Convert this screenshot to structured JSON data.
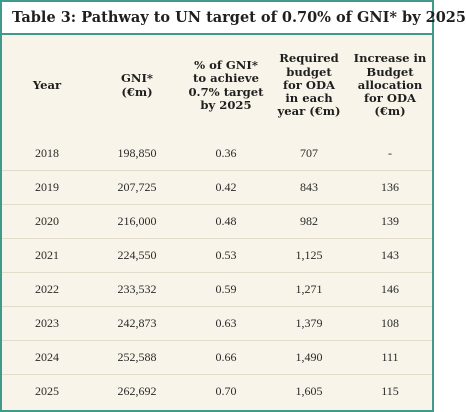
{
  "title": "Table 3:  Pathway to UN target of 0.70% of GNI* by 2025",
  "columns": [
    "Year",
    "GNI*\n(€m)",
    "% of GNI*\nto achieve\n0.7% target\nby 2025",
    "Required\nbudget\nfor ODA\nin each\nyear (€m)",
    "Increase in\nBudget\nallocation\nfor ODA\n(€m)"
  ],
  "rows": [
    [
      "2018",
      "198,850",
      "0.36",
      "707",
      "-"
    ],
    [
      "2019",
      "207,725",
      "0.42",
      "843",
      "136"
    ],
    [
      "2020",
      "216,000",
      "0.48",
      "982",
      "139"
    ],
    [
      "2021",
      "224,550",
      "0.53",
      "1,125",
      "143"
    ],
    [
      "2022",
      "233,532",
      "0.59",
      "1,271",
      "146"
    ],
    [
      "2023",
      "242,873",
      "0.63",
      "1,379",
      "108"
    ],
    [
      "2024",
      "252,588",
      "0.66",
      "1,490",
      "111"
    ],
    [
      "2025",
      "262,692",
      "0.70",
      "1,605",
      "115"
    ]
  ],
  "colors": {
    "border": "#3f9a8c",
    "background": "#f8f4e9"
  }
}
